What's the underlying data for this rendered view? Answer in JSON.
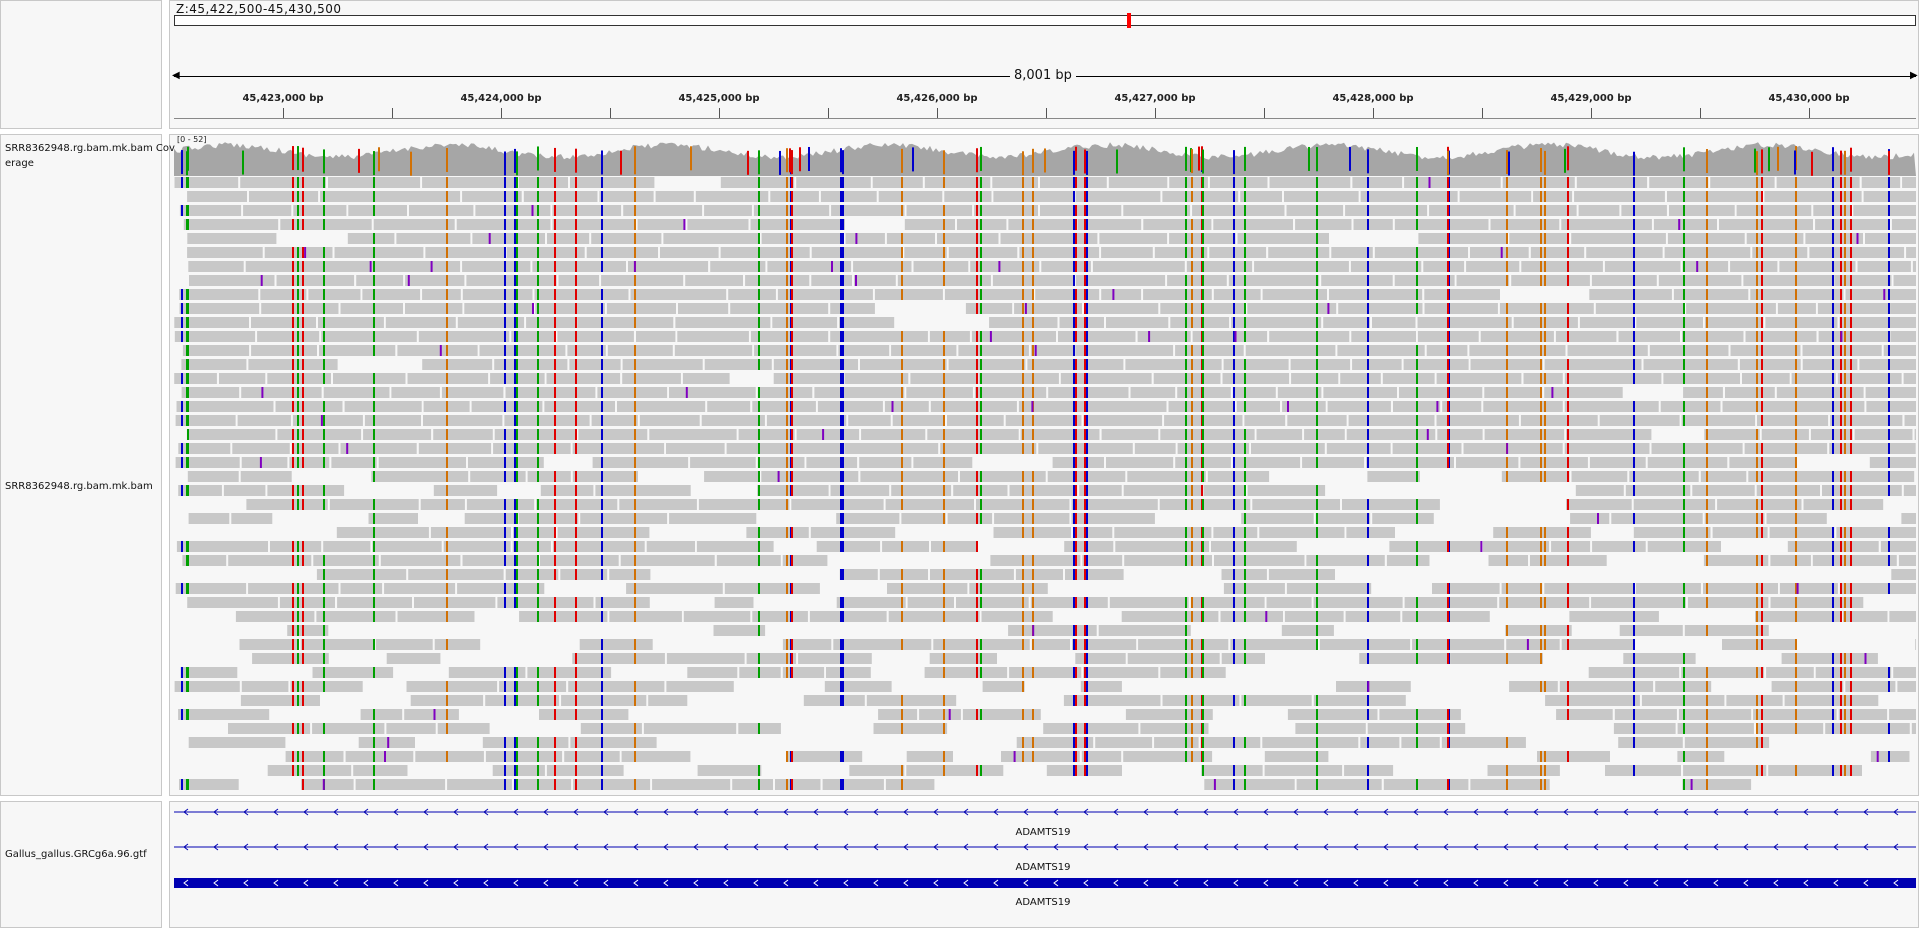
{
  "locus": "Z:45,422,500-45,430,500",
  "span_label": "8,001 bp",
  "ruler_ticks": [
    "45,423,000 bp",
    "45,424,000 bp",
    "45,425,000 bp",
    "45,426,000 bp",
    "45,427,000 bp",
    "45,428,000 bp",
    "45,429,000 bp",
    "45,430,000 bp"
  ],
  "tracks": {
    "coverage_name": "SRR8362948.rg.bam.mk.bam Coverage",
    "coverage_range": "[0 - 52]",
    "alignment_name": "SRR8362948.rg.bam.mk.bam",
    "annotation_name": "Gallus_gallus.GRCg6a.96.gtf"
  },
  "genes": [
    "ADAMTS19",
    "ADAMTS19",
    "ADAMTS19"
  ],
  "colors": {
    "read": "#c8c8c8",
    "coverage": "#a6a6a6",
    "mismatch_A": "#00a000",
    "mismatch_C": "#0000cc",
    "mismatch_G": "#d17105",
    "mismatch_T": "#e00000",
    "insertion": "#8000c0",
    "gene": "#0000b2",
    "locus_marker": "#ff0000"
  }
}
